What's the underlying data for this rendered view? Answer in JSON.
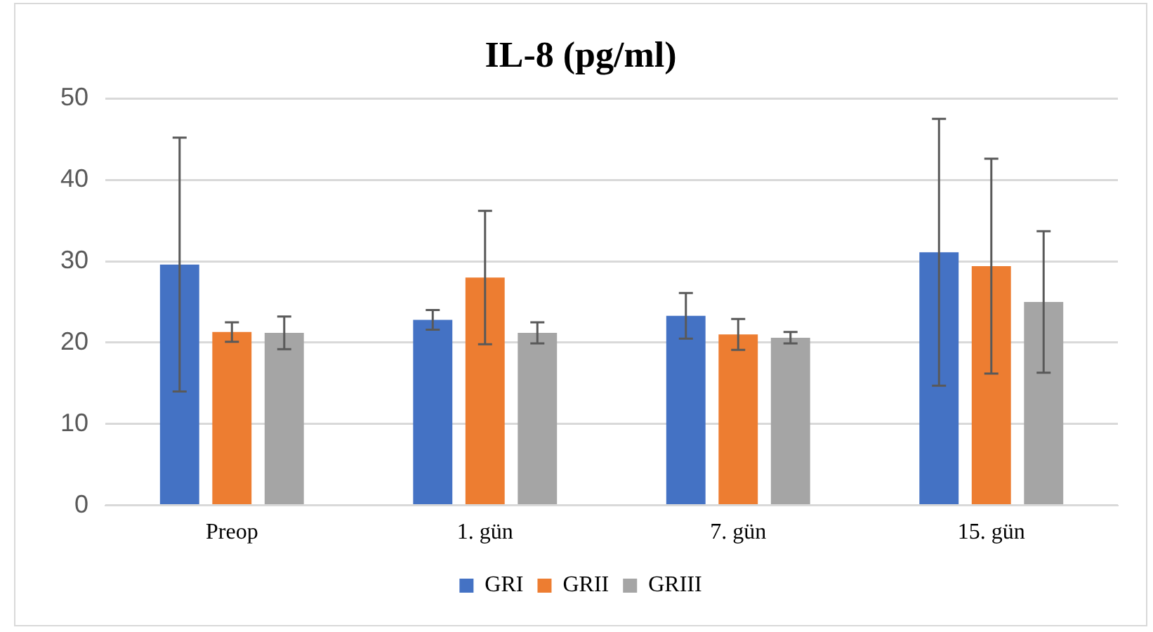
{
  "chart_data": {
    "type": "bar",
    "title": "IL-8 (pg/ml)",
    "categories": [
      "Preop",
      "1. gün",
      "7. gün",
      "15. gün"
    ],
    "series": [
      {
        "name": "GRI",
        "color": "#4472c4",
        "values": [
          29.6,
          22.8,
          23.3,
          31.1
        ],
        "errors": [
          15.6,
          1.2,
          2.8,
          16.4
        ]
      },
      {
        "name": "GRII",
        "color": "#ed7d31",
        "values": [
          21.3,
          28.0,
          21.0,
          29.4
        ],
        "errors": [
          1.2,
          8.2,
          1.9,
          13.2
        ]
      },
      {
        "name": "GRIII",
        "color": "#a5a5a5",
        "values": [
          21.2,
          21.2,
          20.6,
          25.0
        ],
        "errors": [
          2.0,
          1.3,
          0.7,
          8.7
        ]
      }
    ],
    "ylim": [
      0,
      50
    ],
    "yticks": [
      0,
      10,
      20,
      30,
      40,
      50
    ],
    "grid": "y",
    "legend": "bottom"
  }
}
